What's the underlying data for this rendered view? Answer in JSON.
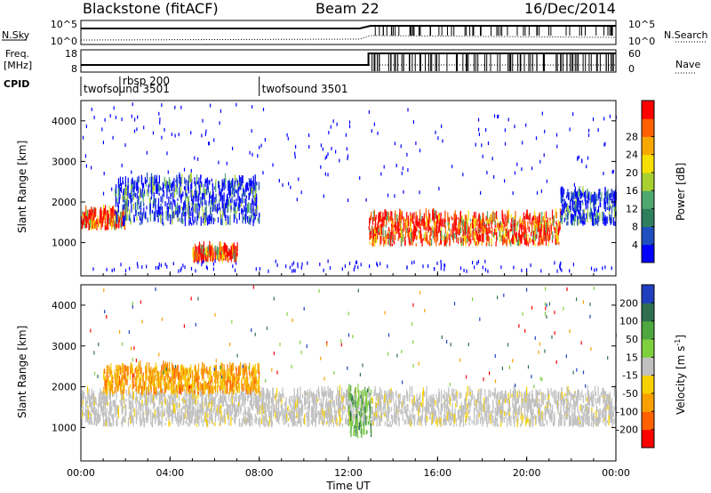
{
  "header": {
    "site": "Blackstone (fitACF)",
    "beam": "Beam 22",
    "date": "16/Dec/2014"
  },
  "status_panels": {
    "nsky_label": "N.Sky",
    "freq_label_1": "Freq.",
    "freq_label_2": "[MHz]",
    "cpid_label": "CPID",
    "nsearch_label": "N.Search",
    "nave_label": "Nave",
    "noise_ticks": [
      "10^5",
      "10^0"
    ],
    "noise_ticks_right": [
      "10^5",
      "10^0"
    ],
    "freq_ticks": [
      "18",
      "8"
    ],
    "nave_ticks": [
      "60",
      "0"
    ],
    "cpid_entries": [
      {
        "name": "twofsound 3501",
        "start": "00:00"
      },
      {
        "name": "rbsp 200",
        "start": "01:45"
      },
      {
        "name": "twofsound 3501",
        "start": "08:00"
      }
    ]
  },
  "time_axis": {
    "label": "Time UT",
    "ticks": [
      "00:00",
      "04:00",
      "08:00",
      "12:00",
      "16:00",
      "20:00",
      "00:00"
    ],
    "hours": [
      0,
      4,
      8,
      12,
      16,
      20,
      24
    ],
    "range": [
      0,
      24
    ]
  },
  "chart_data": [
    {
      "type": "heatmap",
      "ylabel": "Slant Range [km]",
      "yticks": [
        1000,
        2000,
        3000,
        4000
      ],
      "ylim": [
        180,
        4500
      ],
      "xlim": [
        0,
        24
      ],
      "colorbar": {
        "label": "Power [dB]",
        "ticks": [
          "4",
          "8",
          "12",
          "16",
          "20",
          "24",
          "28"
        ],
        "colors": [
          "#0000ff",
          "#1f4fbf",
          "#2f7f5f",
          "#4fa86f",
          "#a8d02f",
          "#f7e000",
          "#f7a800",
          "#ff6000",
          "#ff0000"
        ]
      },
      "features": [
        {
          "desc": "band",
          "t": [
            0,
            2
          ],
          "range": [
            1300,
            1700
          ],
          "level": "high"
        },
        {
          "desc": "band",
          "t": [
            1.5,
            8
          ],
          "range": [
            1400,
            2500
          ],
          "level": "mid"
        },
        {
          "desc": "band",
          "t": [
            5,
            7
          ],
          "range": [
            500,
            800
          ],
          "level": "high"
        },
        {
          "desc": "band",
          "t": [
            12.9,
            21.5
          ],
          "range": [
            900,
            1600
          ],
          "level": "high"
        },
        {
          "desc": "band",
          "t": [
            21.5,
            24
          ],
          "range": [
            1400,
            2200
          ],
          "level": "mid"
        }
      ]
    },
    {
      "type": "heatmap",
      "ylabel": "Slant Range [km]",
      "yticks": [
        1000,
        2000,
        3000,
        4000
      ],
      "ylim": [
        180,
        4500
      ],
      "xlim": [
        0,
        24
      ],
      "colorbar": {
        "label": "Velocity [m s^-1]",
        "ticks": [
          "200",
          "100",
          "50",
          "15",
          "-15",
          "-50",
          "-100",
          "-200"
        ],
        "colors": [
          "#1f3fbf",
          "#2f6f4f",
          "#4fa83f",
          "#7fd03f",
          "#c0c0c0",
          "#f7d000",
          "#f7a000",
          "#ff6000",
          "#ff0000"
        ]
      },
      "features": [
        {
          "desc": "ground scatter",
          "t": [
            0,
            24
          ],
          "range": [
            1000,
            1800
          ],
          "velocity": 0
        },
        {
          "desc": "ionospheric",
          "t": [
            1,
            8
          ],
          "range": [
            1800,
            2400
          ],
          "velocity": -60
        },
        {
          "desc": "ionospheric",
          "t": [
            12,
            13
          ],
          "range": [
            700,
            1900
          ],
          "velocity": 60
        }
      ]
    }
  ]
}
